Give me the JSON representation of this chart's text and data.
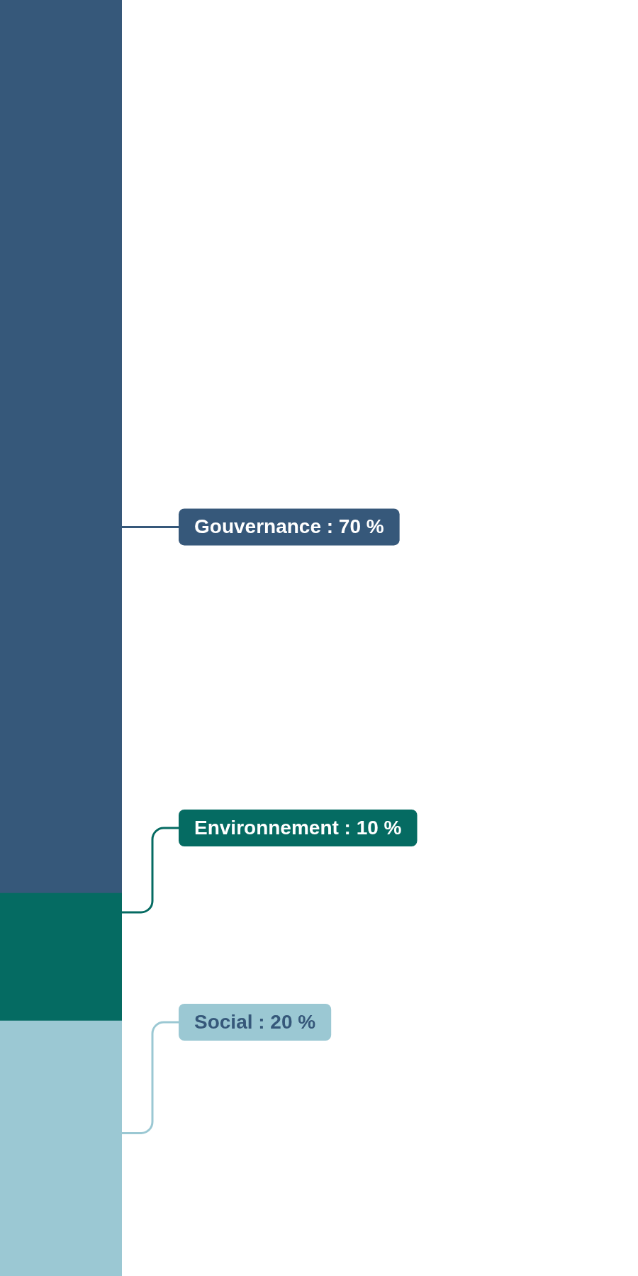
{
  "chart_data": {
    "type": "bar",
    "stacked": true,
    "categories": [
      null
    ],
    "tick_labels": false,
    "legend": false,
    "series": [
      {
        "color": "#9bc8d3",
        "values": [
          20
        ],
        "value_labels": [
          "Social : 20 %"
        ]
      },
      {
        "color": "#056b62",
        "values": [
          10
        ],
        "value_labels": [
          "Environnement : 10 %"
        ]
      },
      {
        "color": "#36587a",
        "values": [
          70
        ],
        "value_labels": [
          "Gouvernance : 70 %"
        ]
      }
    ]
  }
}
